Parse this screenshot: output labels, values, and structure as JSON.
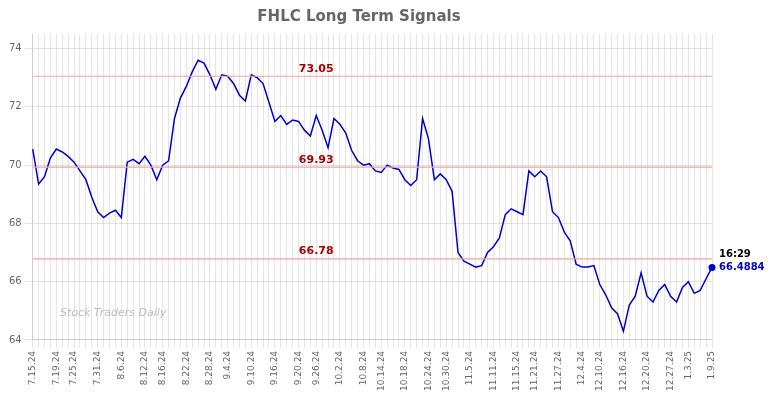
{
  "chart_data": {
    "type": "line",
    "title": "FHLC Long Term Signals",
    "color": "#0000cc",
    "categories": [
      "7.15.24",
      null,
      null,
      null,
      "7.19.24",
      null,
      null,
      "7.25.24",
      null,
      null,
      null,
      "7.31.24",
      null,
      null,
      null,
      "8.6.24",
      null,
      null,
      null,
      "8.12.24",
      null,
      null,
      "8.16.24",
      null,
      null,
      null,
      "8.22.24",
      null,
      null,
      null,
      "8.28.24",
      null,
      null,
      "9.4.24",
      null,
      null,
      null,
      "9.10.24",
      null,
      null,
      null,
      "9.16.24",
      null,
      null,
      null,
      "9.20.24",
      null,
      null,
      "9.26.24",
      null,
      null,
      null,
      "10.2.24",
      null,
      null,
      null,
      "10.8.24",
      null,
      null,
      "10.14.24",
      null,
      null,
      null,
      "10.18.24",
      null,
      null,
      null,
      "10.24.24",
      null,
      null,
      "10.30.24",
      null,
      null,
      null,
      "11.5.24",
      null,
      null,
      null,
      "11.11.24",
      null,
      null,
      null,
      "11.15.24",
      null,
      null,
      "11.21.24",
      null,
      null,
      null,
      "11.27.24",
      null,
      null,
      null,
      "12.4.24",
      null,
      null,
      "12.10.24",
      null,
      null,
      null,
      "12.16.24",
      null,
      null,
      null,
      "12.20.24",
      null,
      null,
      null,
      "12.27.24",
      null,
      null,
      "1.3.25",
      null,
      null,
      null,
      "1.9.25"
    ],
    "values": [
      70.55,
      69.35,
      69.6,
      70.25,
      70.55,
      70.45,
      70.3,
      70.1,
      69.8,
      69.5,
      68.9,
      68.4,
      68.2,
      68.35,
      68.45,
      68.2,
      70.1,
      70.2,
      70.05,
      70.3,
      70.0,
      69.5,
      70.0,
      70.15,
      71.6,
      72.3,
      72.7,
      73.2,
      73.6,
      73.5,
      73.1,
      72.6,
      73.1,
      73.05,
      72.8,
      72.4,
      72.2,
      73.1,
      73.0,
      72.8,
      72.15,
      71.5,
      71.7,
      71.4,
      71.55,
      71.5,
      71.2,
      71.0,
      71.7,
      71.2,
      70.6,
      71.6,
      71.4,
      71.1,
      70.5,
      70.15,
      70.0,
      70.05,
      69.8,
      69.75,
      70.0,
      69.9,
      69.85,
      69.5,
      69.3,
      69.5,
      71.6,
      70.9,
      69.5,
      69.7,
      69.5,
      69.1,
      67.0,
      66.7,
      66.6,
      66.5,
      66.55,
      67.0,
      67.2,
      67.5,
      68.3,
      68.5,
      68.4,
      68.3,
      69.8,
      69.6,
      69.8,
      69.6,
      68.4,
      68.2,
      67.7,
      67.4,
      66.6,
      66.5,
      66.5,
      66.55,
      65.9,
      65.55,
      65.1,
      64.9,
      64.3,
      65.2,
      65.5,
      66.3,
      65.5,
      65.3,
      65.7,
      65.9,
      65.5,
      65.3,
      65.8,
      66.0,
      65.6,
      65.7,
      66.1,
      66.4884
    ],
    "hlines": [
      {
        "value": 73.05,
        "label": "73.05",
        "color": "#f5a0a0"
      },
      {
        "value": 69.93,
        "label": "69.93",
        "color": "#f5a0a0"
      },
      {
        "value": 66.78,
        "label": "66.78",
        "color": "#f5a0a0"
      }
    ],
    "annotations": [
      "16:29",
      "66.4884",
      "Stock Traders Daily"
    ],
    "ylim": [
      64,
      74.5
    ],
    "yticks": [
      64,
      66,
      68,
      70,
      72,
      74
    ],
    "grid": true
  }
}
